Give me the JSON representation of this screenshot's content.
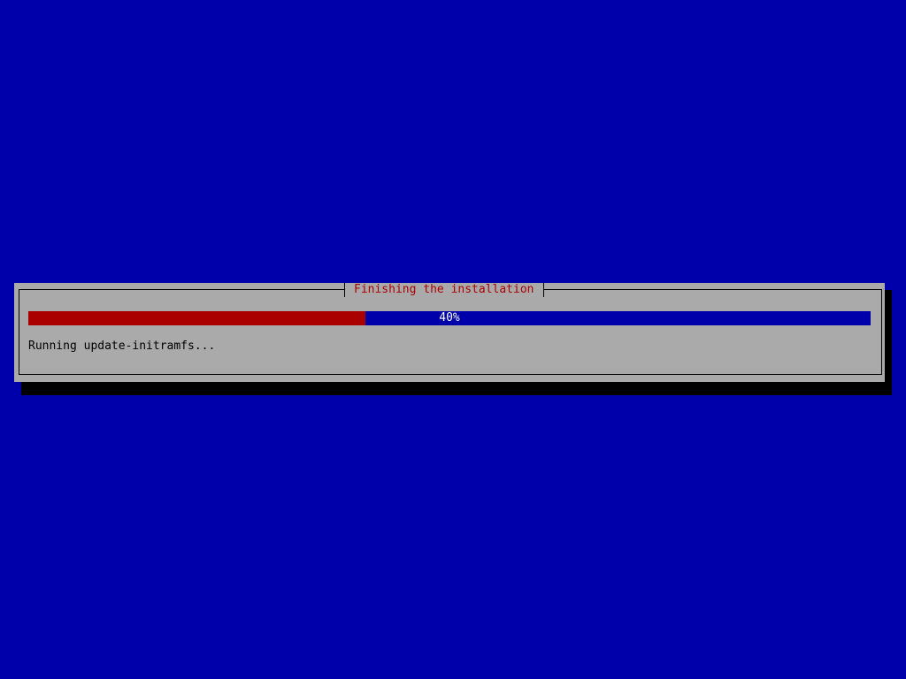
{
  "dialog": {
    "title": "Finishing the installation",
    "progress_percent": 40,
    "progress_label": "40%",
    "status_text": "Running update-initramfs..."
  },
  "colors": {
    "background": "#0000aa",
    "dialog": "#aaaaaa",
    "progress_fill": "#aa0000",
    "title": "#aa0000"
  }
}
